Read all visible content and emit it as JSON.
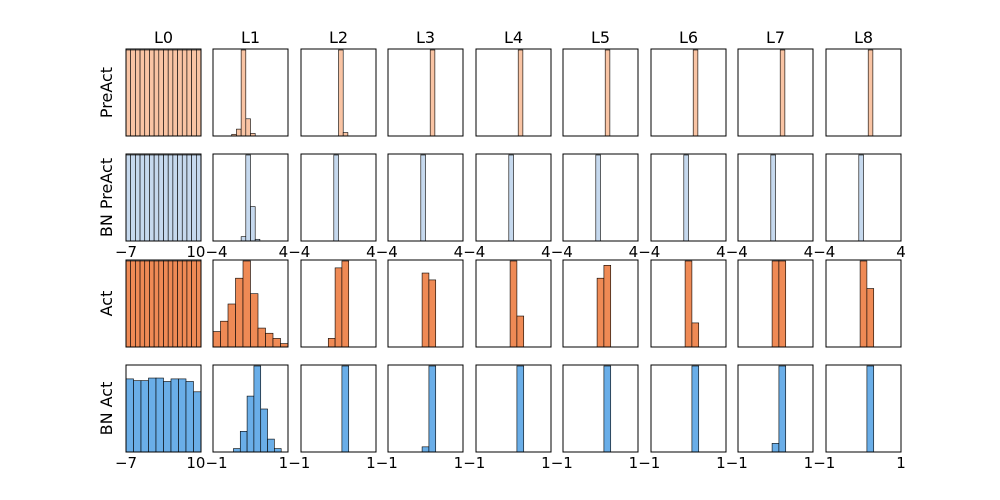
{
  "chart_data": {
    "type": "histogram-grid",
    "columns": [
      "L0",
      "L1",
      "L2",
      "L3",
      "L4",
      "L5",
      "L6",
      "L7",
      "L8"
    ],
    "rows": [
      {
        "label": "PreAct",
        "color": "#f9c4a4",
        "xlim": [
          -4,
          4
        ],
        "tick_labels": [],
        "panels": [
          {
            "bins": [
              [
                -4,
                4,
                1,
                1,
                1,
                1,
                1,
                1,
                1,
                1,
                1,
                1,
                1,
                1,
                1,
                1,
                1,
                1
              ]
            ]
          },
          {
            "bins": [
              [
                -1,
                1,
                0,
                0,
                0,
                0,
                0.02,
                0.08,
                1,
                0.2,
                0.03,
                0,
                0,
                0,
                0,
                0,
                0,
                0
              ]
            ]
          },
          {
            "bins": [
              [
                -1,
                1,
                0,
                0,
                0,
                0,
                0,
                0,
                0,
                0,
                1,
                0.04,
                0,
                0,
                0,
                0,
                0,
                0
              ]
            ]
          },
          {
            "bins": [
              [
                -1,
                1,
                0,
                0,
                0,
                0,
                0,
                0,
                0,
                0,
                0,
                1,
                0,
                0,
                0,
                0,
                0,
                0
              ]
            ]
          },
          {
            "bins": [
              [
                -1,
                1,
                0,
                0,
                0,
                0,
                0,
                0,
                0,
                0,
                0,
                1,
                0,
                0,
                0,
                0,
                0,
                0
              ]
            ]
          },
          {
            "bins": [
              [
                -1,
                1,
                0,
                0,
                0,
                0,
                0,
                0,
                0,
                0,
                0,
                1,
                0,
                0,
                0,
                0,
                0,
                0
              ]
            ]
          },
          {
            "bins": [
              [
                -1,
                1,
                0,
                0,
                0,
                0,
                0,
                0,
                0,
                0,
                0,
                1,
                0,
                0,
                0,
                0,
                0,
                0
              ]
            ]
          },
          {
            "bins": [
              [
                -1,
                1,
                0,
                0,
                0,
                0,
                0,
                0,
                0,
                0,
                0,
                1,
                0,
                0,
                0,
                0,
                0,
                0
              ]
            ]
          },
          {
            "bins": [
              [
                -1,
                1,
                0,
                0,
                0,
                0,
                0,
                0,
                0,
                0,
                0,
                1,
                0,
                0,
                0,
                0,
                0,
                0
              ]
            ]
          }
        ]
      },
      {
        "label": "BN PreAct",
        "color": "#c6d9ee",
        "tick_labels": [
          "−7",
          "10−4",
          "4−4",
          "4−4",
          "4−4",
          "4−4",
          "4−4",
          "4−4",
          "4−4",
          "4"
        ],
        "panels": [
          {
            "bins": [
              [
                -7,
                10,
                1,
                1,
                1,
                1,
                1,
                1,
                1,
                1,
                1,
                1,
                1,
                1,
                1,
                1,
                1,
                1
              ]
            ]
          },
          {
            "bins": [
              [
                -4,
                4,
                0,
                0,
                0,
                0,
                0,
                0,
                0.05,
                1,
                0.4,
                0.02,
                0,
                0,
                0,
                0,
                0,
                0
              ]
            ]
          },
          {
            "bins": [
              [
                -4,
                4,
                0,
                0,
                0,
                0,
                0,
                0,
                0,
                1,
                0,
                0,
                0,
                0,
                0,
                0,
                0,
                0
              ]
            ]
          },
          {
            "bins": [
              [
                -4,
                4,
                0,
                0,
                0,
                0,
                0,
                0,
                0,
                1,
                0,
                0,
                0,
                0,
                0,
                0,
                0,
                0
              ]
            ]
          },
          {
            "bins": [
              [
                -4,
                4,
                0,
                0,
                0,
                0,
                0,
                0,
                0,
                1,
                0,
                0,
                0,
                0,
                0,
                0,
                0,
                0
              ]
            ]
          },
          {
            "bins": [
              [
                -4,
                4,
                0,
                0,
                0,
                0,
                0,
                0,
                0,
                1,
                0,
                0,
                0,
                0,
                0,
                0,
                0,
                0
              ]
            ]
          },
          {
            "bins": [
              [
                -4,
                4,
                0,
                0,
                0,
                0,
                0,
                0,
                0,
                1,
                0,
                0,
                0,
                0,
                0,
                0,
                0,
                0
              ]
            ]
          },
          {
            "bins": [
              [
                -4,
                4,
                0,
                0,
                0,
                0,
                0,
                0,
                0,
                1,
                0,
                0,
                0,
                0,
                0,
                0,
                0,
                0
              ]
            ]
          },
          {
            "bins": [
              [
                -4,
                4,
                0,
                0,
                0,
                0,
                0,
                0,
                0,
                1,
                0,
                0,
                0,
                0,
                0,
                0,
                0,
                0
              ]
            ]
          }
        ]
      },
      {
        "label": "Act",
        "color": "#ef8a55",
        "tick_labels": [],
        "panels": [
          {
            "bins": [
              [
                -7,
                10,
                1,
                1,
                1,
                1,
                1,
                1,
                1,
                1,
                1,
                1,
                1,
                1,
                1,
                1,
                1,
                1
              ]
            ]
          },
          {
            "bins": [
              [
                -1,
                1,
                0.18,
                0.3,
                0.5,
                0.8,
                1,
                0.62,
                0.22,
                0.16,
                0.1,
                0.04
              ]
            ]
          },
          {
            "bins": [
              [
                -1,
                1,
                0,
                0,
                0,
                0,
                0.1,
                0.92,
                1,
                0,
                0,
                0,
                0
              ]
            ]
          },
          {
            "bins": [
              [
                -1,
                1,
                0,
                0,
                0,
                0,
                0,
                0.86,
                0.78,
                0,
                0,
                0,
                0
              ]
            ]
          },
          {
            "bins": [
              [
                -1,
                1,
                0,
                0,
                0,
                0,
                0,
                1,
                0.36,
                0,
                0,
                0,
                0
              ]
            ]
          },
          {
            "bins": [
              [
                -1,
                1,
                0,
                0,
                0,
                0,
                0,
                0.8,
                0.95,
                0,
                0,
                0,
                0
              ]
            ]
          },
          {
            "bins": [
              [
                -1,
                1,
                0,
                0,
                0,
                0,
                0,
                1,
                0.28,
                0,
                0,
                0,
                0
              ]
            ]
          },
          {
            "bins": [
              [
                -1,
                1,
                0,
                0,
                0,
                0,
                0,
                1,
                1,
                0,
                0,
                0,
                0
              ]
            ]
          },
          {
            "bins": [
              [
                -1,
                1,
                0,
                0,
                0,
                0,
                0,
                1,
                0.68,
                0,
                0,
                0,
                0
              ]
            ]
          }
        ]
      },
      {
        "label": "BN Act",
        "color": "#6aaee8",
        "tick_labels": [
          "−7",
          "10−1",
          "1−1",
          "1−1",
          "1−1",
          "1−1",
          "1−1",
          "1−1",
          "1−1",
          "1"
        ],
        "panels": [
          {
            "bins": [
              [
                -7,
                10,
                0.85,
                0.83,
                0.83,
                0.86,
                0.86,
                0.82,
                0.85,
                0.85,
                0.82,
                0.7
              ]
            ]
          },
          {
            "bins": [
              [
                -1,
                1,
                0,
                0,
                0,
                0.04,
                0.24,
                0.65,
                1,
                0.5,
                0.15,
                0.04,
                0
              ]
            ]
          },
          {
            "bins": [
              [
                -1,
                1,
                0,
                0,
                0,
                0,
                0,
                0,
                1,
                0,
                0,
                0,
                0
              ]
            ]
          },
          {
            "bins": [
              [
                -1,
                1,
                0,
                0,
                0,
                0,
                0,
                0.06,
                1,
                0,
                0,
                0,
                0
              ]
            ]
          },
          {
            "bins": [
              [
                -1,
                1,
                0,
                0,
                0,
                0,
                0,
                0,
                1,
                0,
                0,
                0,
                0
              ]
            ]
          },
          {
            "bins": [
              [
                -1,
                1,
                0,
                0,
                0,
                0,
                0,
                0,
                1,
                0,
                0,
                0,
                0
              ]
            ]
          },
          {
            "bins": [
              [
                -1,
                1,
                0,
                0,
                0,
                0,
                0,
                0,
                1,
                0,
                0,
                0,
                0
              ]
            ]
          },
          {
            "bins": [
              [
                -1,
                1,
                0,
                0,
                0,
                0,
                0,
                0.1,
                1,
                0,
                0,
                0,
                0
              ]
            ]
          },
          {
            "bins": [
              [
                -1,
                1,
                0,
                0,
                0,
                0,
                0,
                0,
                1,
                0,
                0,
                0,
                0
              ]
            ]
          }
        ]
      }
    ],
    "grid": false,
    "legend": "none"
  }
}
